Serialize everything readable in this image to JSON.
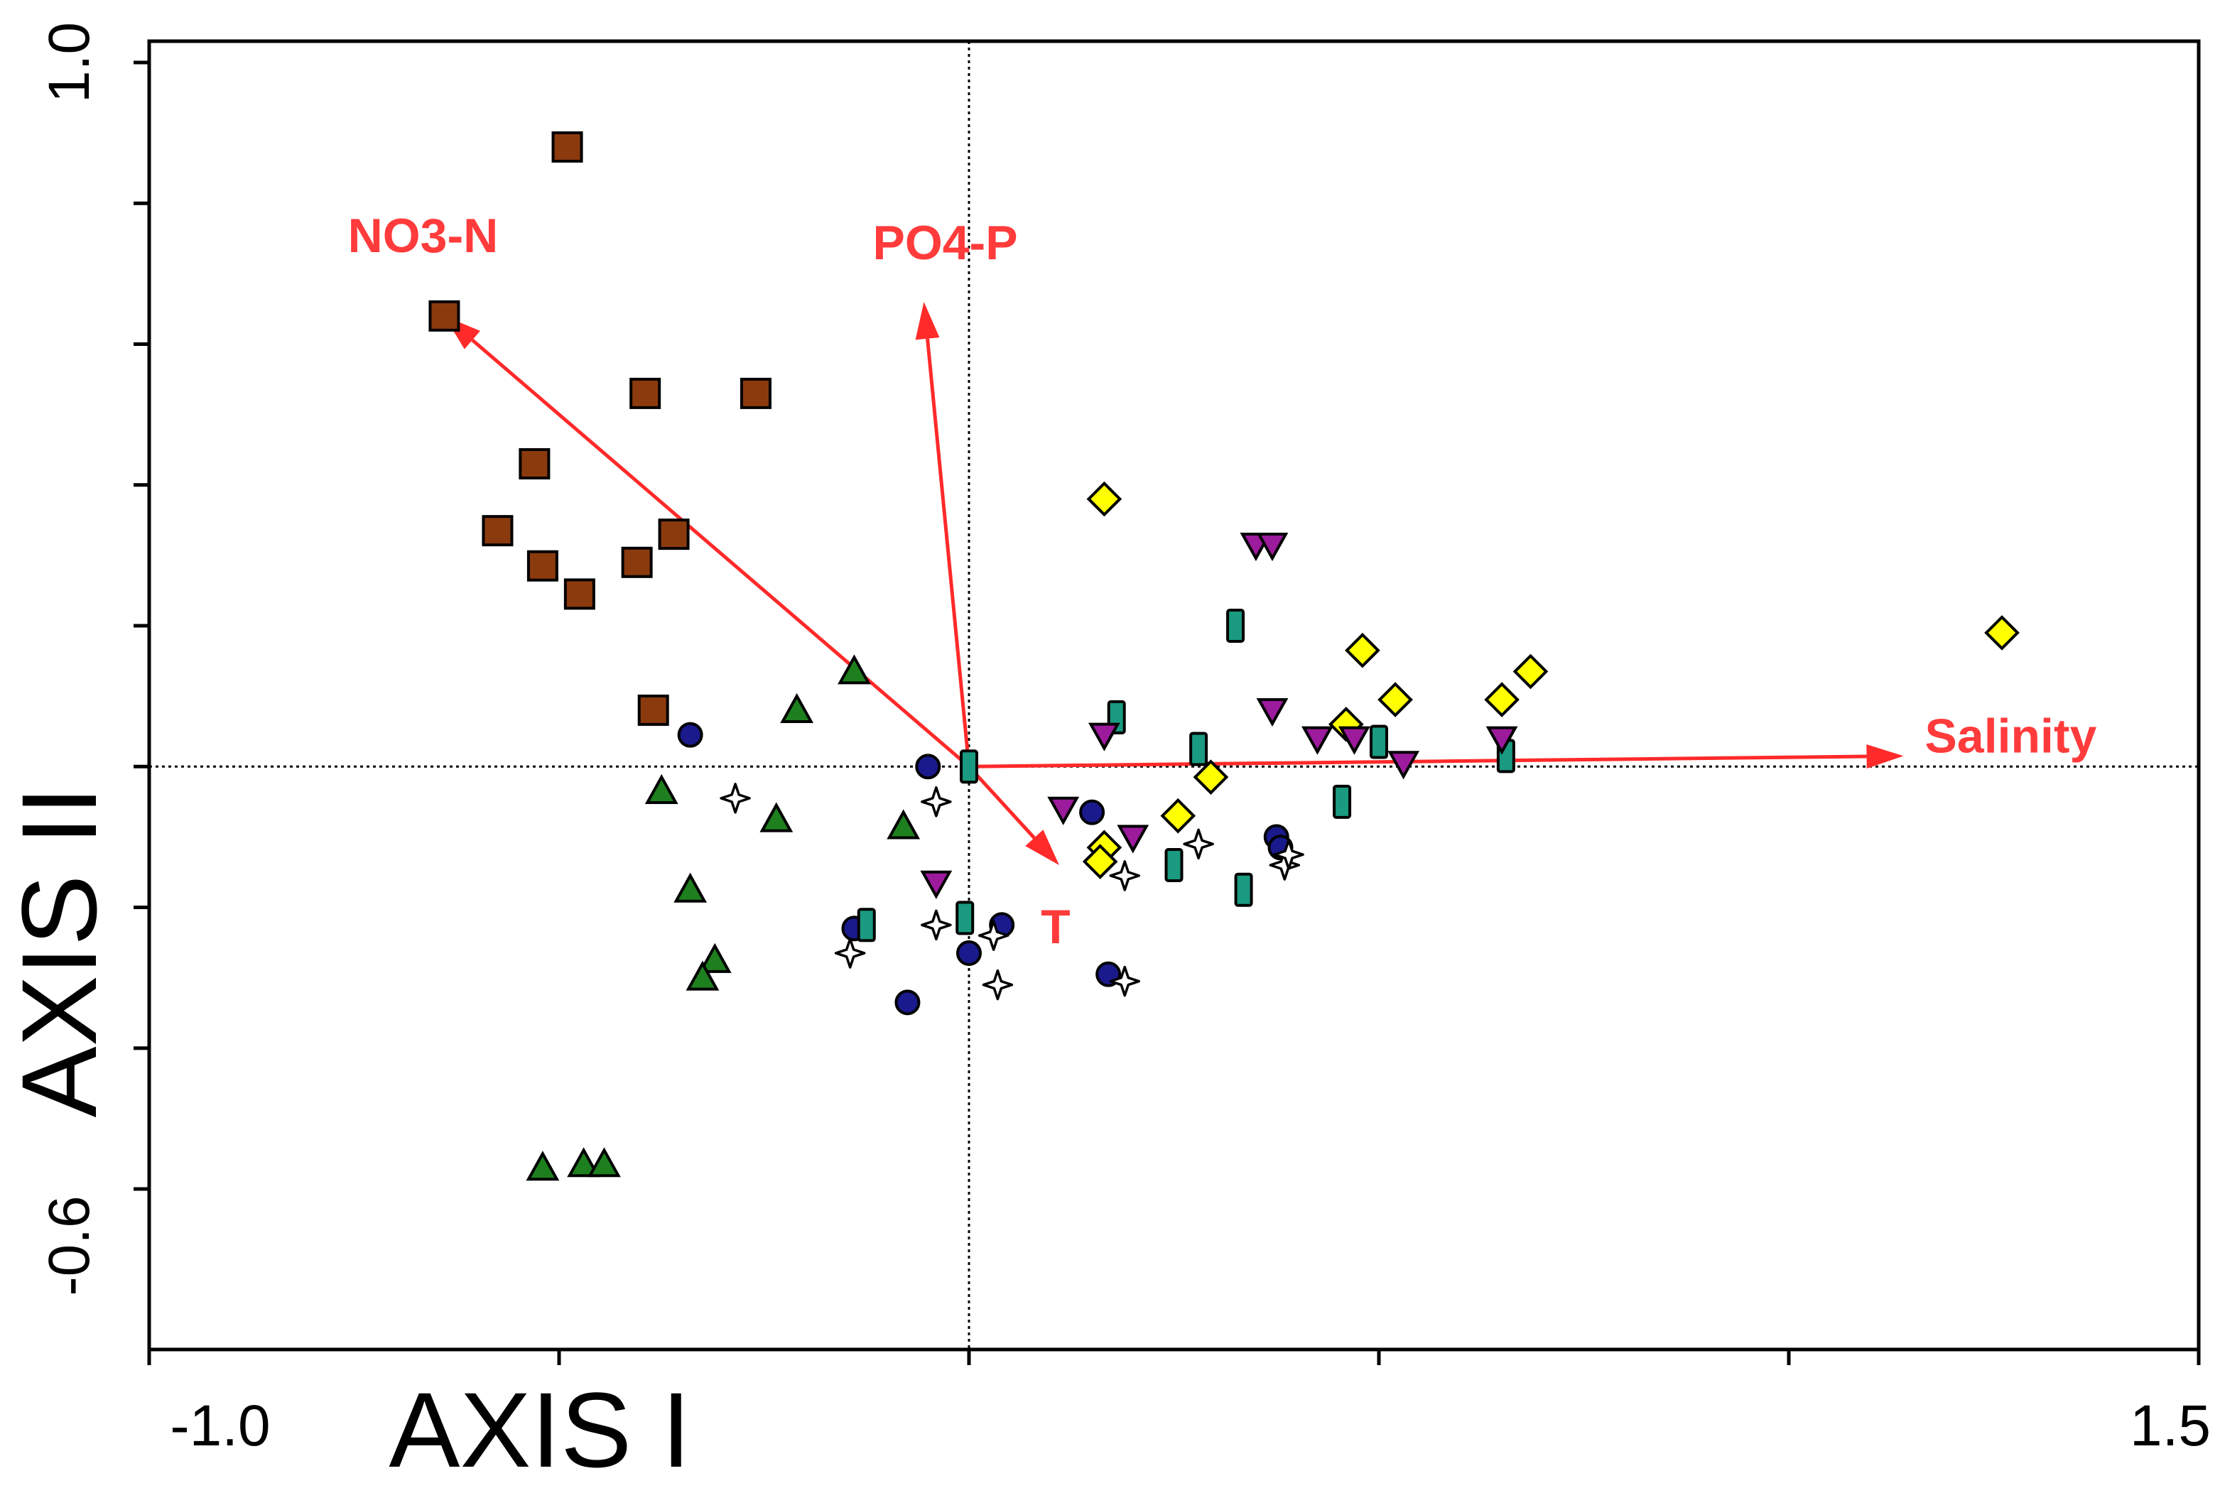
{
  "chart_data": {
    "type": "scatter",
    "subtype": "ordination-biplot",
    "title": "",
    "xlabel": "AXIS I",
    "ylabel": "AXIS II",
    "xlim": [
      -1.0,
      1.5
    ],
    "ylim": [
      -0.6,
      1.0
    ],
    "xtick_labels": [
      "-1.0",
      "1.5"
    ],
    "ytick_labels": [
      "1.0",
      "-0.6"
    ],
    "x_tick_values": [
      -1.0,
      -0.5,
      0.0,
      0.5,
      1.0,
      1.5
    ],
    "y_tick_values": [
      1.0,
      0.8,
      0.6,
      0.4,
      0.2,
      0.0,
      -0.2,
      -0.4,
      -0.6
    ],
    "reference_lines": {
      "x": 0.0,
      "y": 0.0,
      "style": "dotted"
    },
    "grid": false,
    "legend": "none",
    "arrow_color": "#ff2a2a",
    "label_color": "#ff3b3b",
    "environmental_vectors": [
      {
        "name": "NO3-N",
        "x": -0.64,
        "y": 0.64
      },
      {
        "name": "PO4-P",
        "x": -0.055,
        "y": 0.66
      },
      {
        "name": "T",
        "x": 0.11,
        "y": -0.14
      },
      {
        "name": "Salinity",
        "x": 1.14,
        "y": 0.015
      }
    ],
    "series": [
      {
        "marker": "square",
        "color": "#8b3a0e",
        "points": [
          [
            -0.49,
            0.88
          ],
          [
            -0.64,
            0.64
          ],
          [
            -0.395,
            0.53
          ],
          [
            -0.26,
            0.53
          ],
          [
            -0.53,
            0.43
          ],
          [
            -0.575,
            0.335
          ],
          [
            -0.36,
            0.33
          ],
          [
            -0.52,
            0.285
          ],
          [
            -0.405,
            0.29
          ],
          [
            -0.475,
            0.245
          ],
          [
            -0.385,
            0.08
          ]
        ]
      },
      {
        "marker": "triangle-up",
        "color": "#1e7f1e",
        "points": [
          [
            -0.14,
            0.135
          ],
          [
            -0.21,
            0.08
          ],
          [
            -0.375,
            -0.035
          ],
          [
            -0.235,
            -0.075
          ],
          [
            -0.08,
            -0.085
          ],
          [
            -0.34,
            -0.175
          ],
          [
            -0.31,
            -0.275
          ],
          [
            -0.325,
            -0.3
          ],
          [
            -0.52,
            -0.57
          ],
          [
            -0.47,
            -0.565
          ],
          [
            -0.445,
            -0.565
          ]
        ]
      },
      {
        "marker": "circle",
        "color": "#1a1a8c",
        "points": [
          [
            -0.34,
            0.045
          ],
          [
            -0.05,
            0.0
          ],
          [
            0.15,
            -0.065
          ],
          [
            0.375,
            -0.1
          ],
          [
            0.38,
            -0.115
          ],
          [
            -0.14,
            -0.23
          ],
          [
            0.04,
            -0.225
          ],
          [
            0.0,
            -0.265
          ],
          [
            -0.075,
            -0.335
          ],
          [
            0.17,
            -0.295
          ]
        ]
      },
      {
        "marker": "star4",
        "color": "#ffffff",
        "points": [
          [
            -0.285,
            -0.045
          ],
          [
            -0.04,
            -0.05
          ],
          [
            0.28,
            -0.11
          ],
          [
            0.385,
            -0.14
          ],
          [
            0.39,
            -0.125
          ],
          [
            0.19,
            -0.155
          ],
          [
            -0.04,
            -0.225
          ],
          [
            0.03,
            -0.24
          ],
          [
            -0.145,
            -0.265
          ],
          [
            0.035,
            -0.31
          ],
          [
            0.19,
            -0.305
          ]
        ]
      },
      {
        "marker": "bar",
        "color": "#1a9a80",
        "points": [
          [
            0.325,
            0.2
          ],
          [
            0.18,
            0.07
          ],
          [
            0.28,
            0.025
          ],
          [
            0.5,
            0.035
          ],
          [
            0.655,
            0.015
          ],
          [
            0.0,
            0.0
          ],
          [
            0.455,
            -0.05
          ],
          [
            0.25,
            -0.14
          ],
          [
            0.335,
            -0.175
          ],
          [
            -0.125,
            -0.225
          ],
          [
            -0.005,
            -0.215
          ]
        ]
      },
      {
        "marker": "diamond",
        "color": "#ffff00",
        "points": [
          [
            0.165,
            0.38
          ],
          [
            1.26,
            0.19
          ],
          [
            0.48,
            0.165
          ],
          [
            0.685,
            0.135
          ],
          [
            0.52,
            0.095
          ],
          [
            0.65,
            0.095
          ],
          [
            0.46,
            0.06
          ],
          [
            0.295,
            -0.015
          ],
          [
            0.255,
            -0.07
          ],
          [
            0.165,
            -0.115
          ],
          [
            0.16,
            -0.135
          ]
        ]
      },
      {
        "marker": "triangle-down",
        "color": "#9c1a9c",
        "points": [
          [
            0.35,
            0.315
          ],
          [
            0.37,
            0.315
          ],
          [
            0.37,
            0.08
          ],
          [
            0.165,
            0.045
          ],
          [
            0.425,
            0.04
          ],
          [
            0.47,
            0.04
          ],
          [
            0.65,
            0.04
          ],
          [
            0.53,
            0.005
          ],
          [
            0.115,
            -0.06
          ],
          [
            0.2,
            -0.1
          ],
          [
            -0.04,
            -0.165
          ]
        ]
      }
    ]
  }
}
